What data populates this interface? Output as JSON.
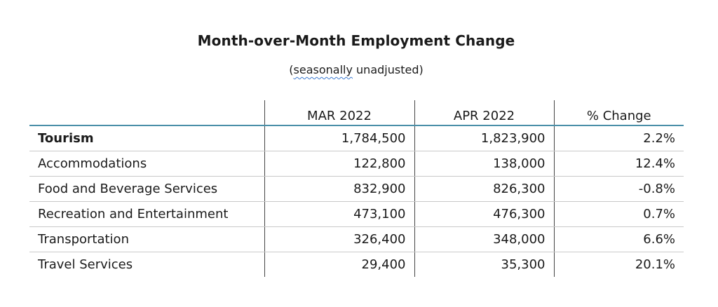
{
  "title": "Month-over-Month Employment Change",
  "subtitle": {
    "open": "(",
    "underlined": "seasonally",
    "rest": " unadjusted)"
  },
  "table": {
    "headers": [
      "",
      "MAR 2022",
      "APR 2022",
      "% Change"
    ],
    "rows": [
      {
        "label": "Tourism",
        "mar": "1,784,500",
        "apr": "1,823,900",
        "change": "2.2%"
      },
      {
        "label": "Accommodations",
        "mar": "122,800",
        "apr": "138,000",
        "change": "12.4%"
      },
      {
        "label": "Food and Beverage Services",
        "mar": "832,900",
        "apr": "826,300",
        "change": "-0.8%"
      },
      {
        "label": "Recreation and Entertainment",
        "mar": "473,100",
        "apr": "476,300",
        "change": "0.7%"
      },
      {
        "label": "Transportation",
        "mar": "326,400",
        "apr": "348,000",
        "change": "6.6%"
      },
      {
        "label": "Travel Services",
        "mar": "29,400",
        "apr": "35,300",
        "change": "20.1%"
      }
    ]
  },
  "colors": {
    "header_rule": "#4a8fa8",
    "row_rule": "#c9c9c9",
    "spellcheck_underline": "#3d7bd1"
  }
}
